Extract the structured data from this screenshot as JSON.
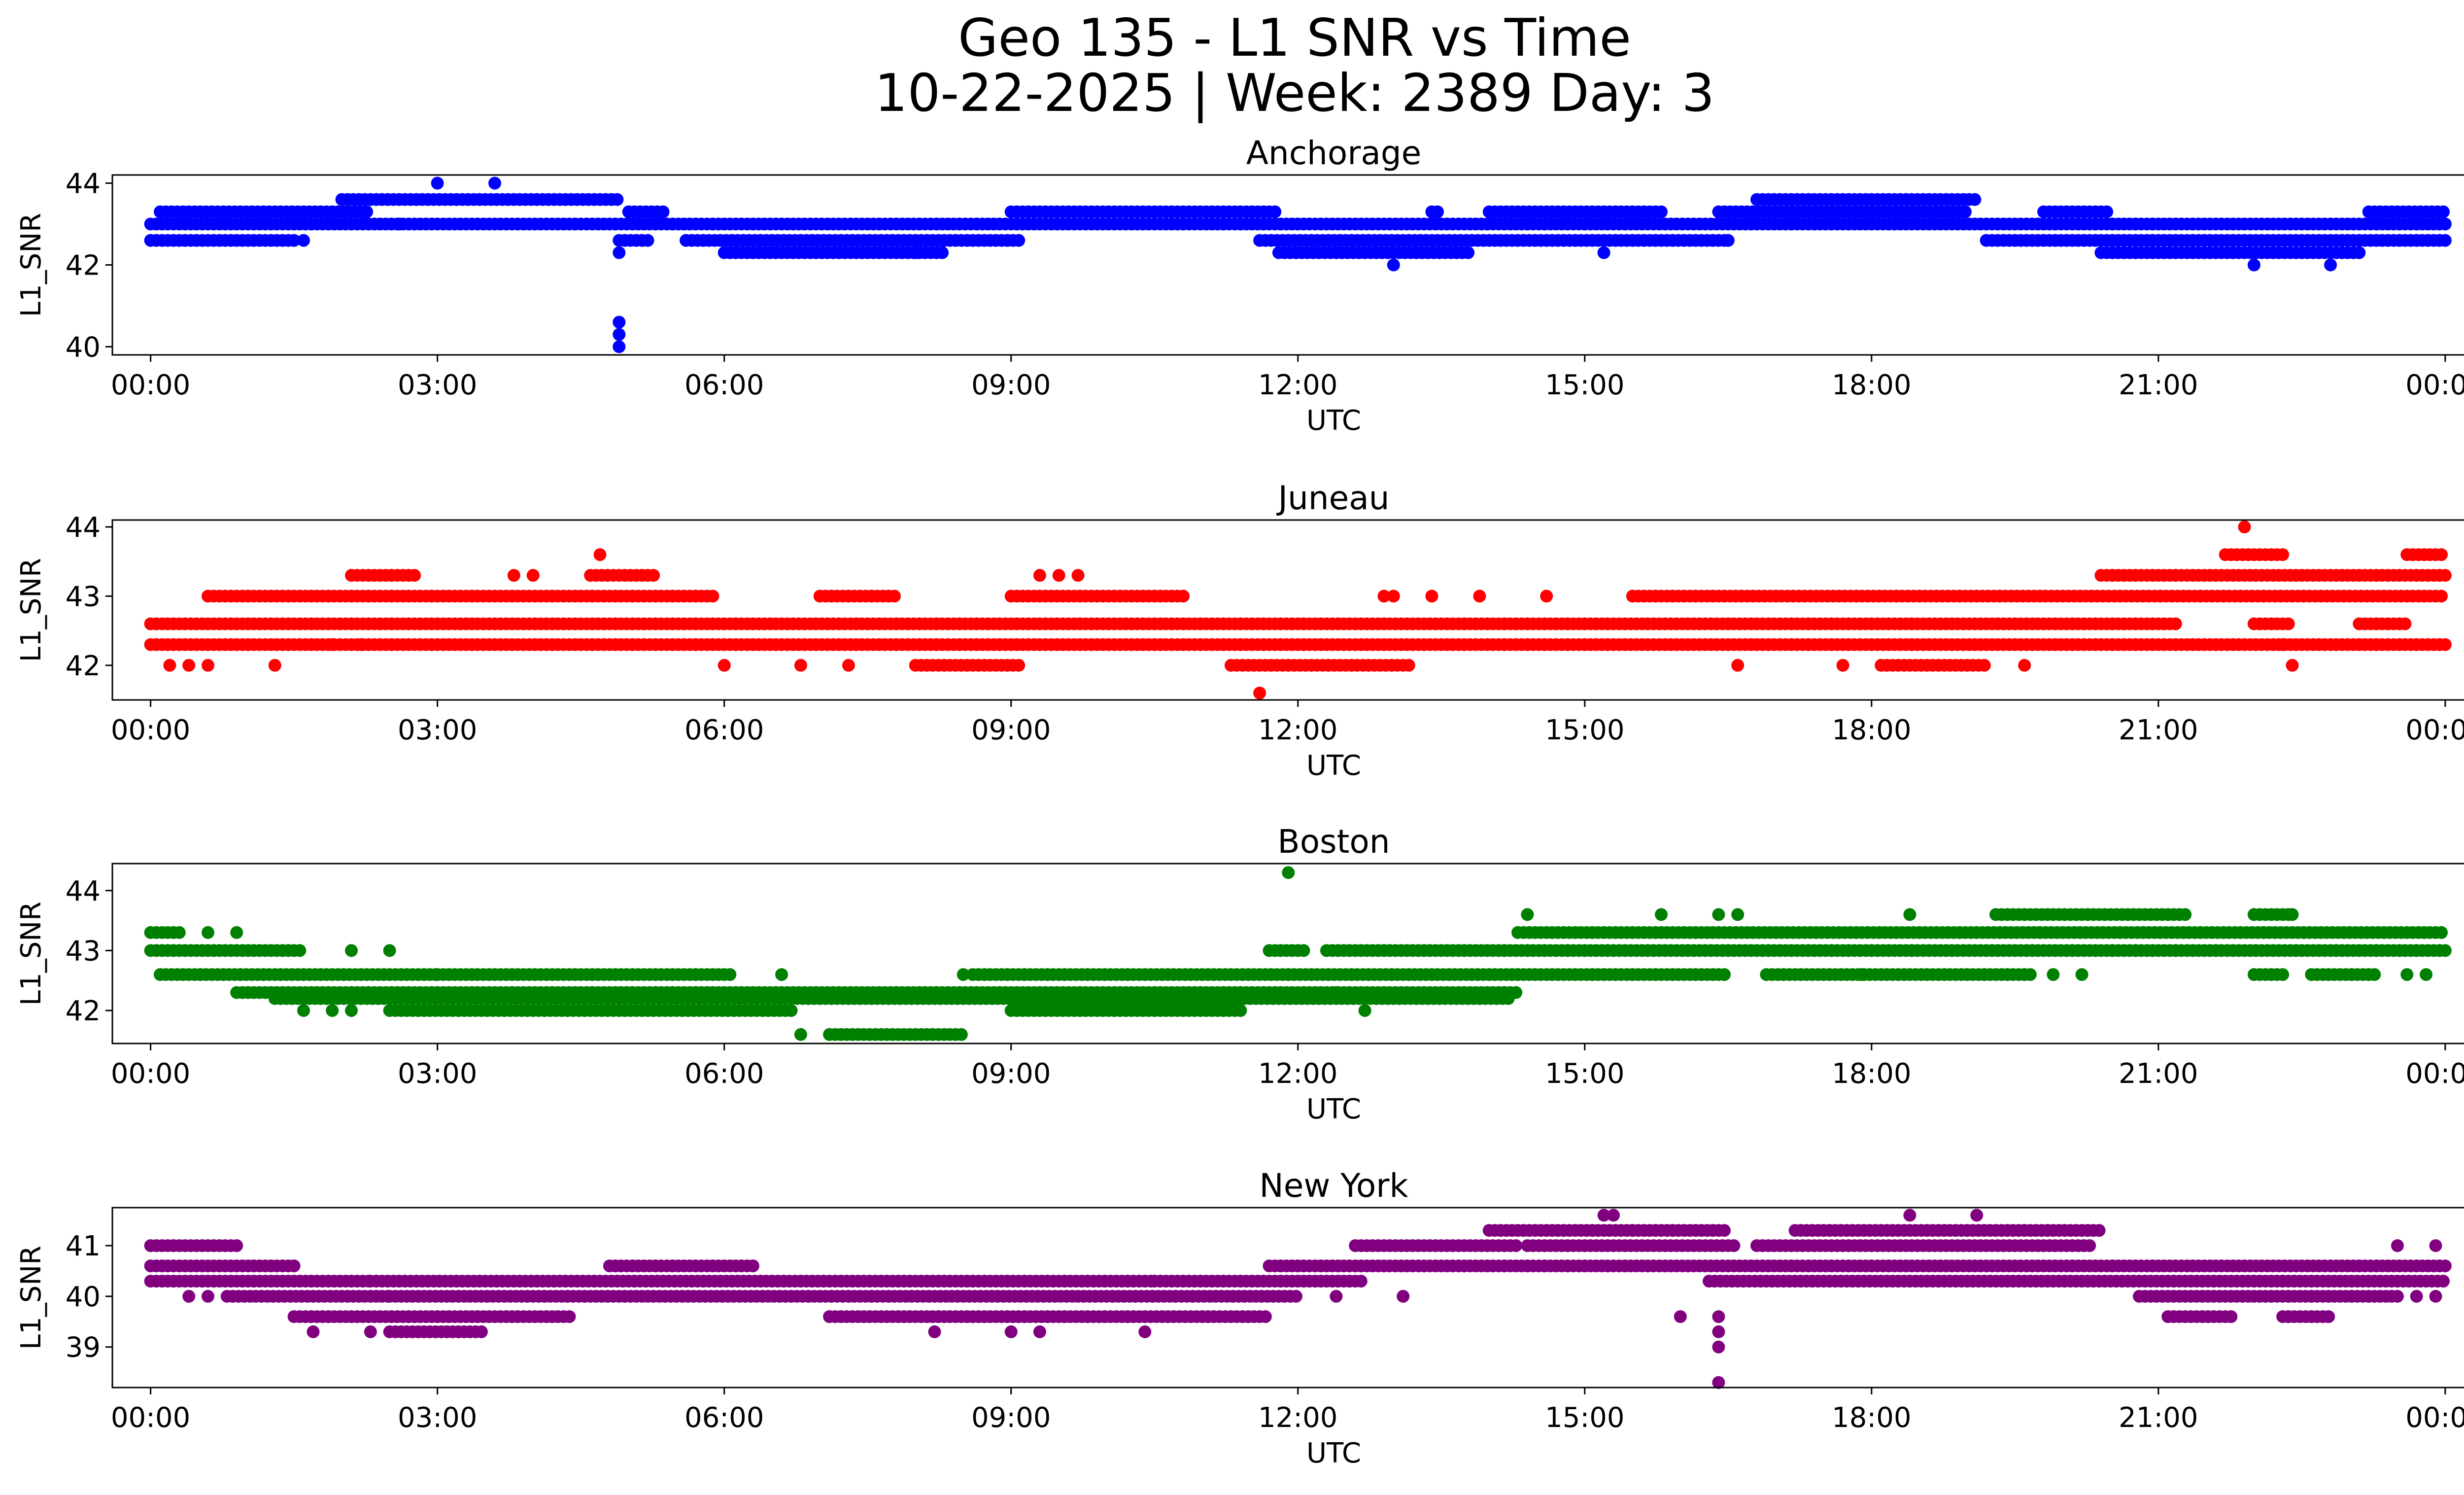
{
  "title_line1": "Geo 135 - L1 SNR vs Time",
  "title_line2": "10-22-2025 | Week: 2389 Day: 3",
  "chart_data": [
    {
      "type": "scatter",
      "title": "Anchorage",
      "color": "#0000ff",
      "xlabel": "UTC",
      "ylabel": "L1_SNR",
      "xlim_hours": [
        -0.4,
        25.15
      ],
      "ylim": [
        39.8,
        44.2
      ],
      "yticks": [
        40,
        42,
        44
      ],
      "xtick_labels": [
        "00:00",
        "03:00",
        "06:00",
        "09:00",
        "12:00",
        "15:00",
        "18:00",
        "21:00",
        "00:00"
      ],
      "series": [
        {
          "name": "Anchorage",
          "bands": [
            {
              "y": 42.6,
              "segments": [
                [
                  0.0,
                  1.5
                ],
                [
                  4.9,
                  5.2
                ],
                [
                  5.6,
                  9.1
                ],
                [
                  11.6,
                  16.5
                ],
                [
                  19.2,
                  24.0
                ]
              ]
            },
            {
              "y": 43.0,
              "segments": [
                [
                  0.0,
                  24.0
                ]
              ]
            },
            {
              "y": 43.3,
              "segments": [
                [
                  0.1,
                  2.3
                ],
                [
                  5.0,
                  5.4
                ],
                [
                  9.0,
                  11.8
                ],
                [
                  13.4,
                  13.5
                ],
                [
                  14.0,
                  15.8
                ],
                [
                  16.4,
                  19.0
                ],
                [
                  19.8,
                  20.5
                ],
                [
                  23.2,
                  24.0
                ]
              ]
            },
            {
              "y": 43.6,
              "segments": [
                [
                  2.0,
                  4.9
                ],
                [
                  16.8,
                  19.1
                ]
              ]
            },
            {
              "y": 42.3,
              "segments": [
                [
                  6.0,
                  8.3
                ],
                [
                  11.8,
                  13.8
                ],
                [
                  20.4,
                  23.1
                ]
              ]
            }
          ],
          "points": [
            [
              3.0,
              44.0
            ],
            [
              3.6,
              44.0
            ],
            [
              4.9,
              40.0
            ],
            [
              4.9,
              40.3
            ],
            [
              4.9,
              40.6
            ],
            [
              4.9,
              42.3
            ],
            [
              13.0,
              42.0
            ],
            [
              22.0,
              42.0
            ],
            [
              22.8,
              42.0
            ],
            [
              1.6,
              42.6
            ],
            [
              2.6,
              43.0
            ],
            [
              8.0,
              42.3
            ],
            [
              16.5,
              42.6
            ],
            [
              15.2,
              42.3
            ]
          ]
        }
      ]
    },
    {
      "type": "scatter",
      "title": "Juneau",
      "color": "#ff0000",
      "xlabel": "UTC",
      "ylabel": "L1_SNR",
      "xlim_hours": [
        -0.4,
        25.15
      ],
      "ylim": [
        41.5,
        44.1
      ],
      "yticks": [
        42,
        43,
        44
      ],
      "xtick_labels": [
        "00:00",
        "03:00",
        "06:00",
        "09:00",
        "12:00",
        "15:00",
        "18:00",
        "21:00",
        "00:00"
      ],
      "series": [
        {
          "name": "Juneau",
          "bands": [
            {
              "y": 42.3,
              "segments": [
                [
                  0.0,
                  24.0
                ]
              ]
            },
            {
              "y": 42.6,
              "segments": [
                [
                  0.0,
                  21.2
                ],
                [
                  22.0,
                  22.4
                ]
              ]
            },
            {
              "y": 43.0,
              "segments": [
                [
                  0.6,
                  5.9
                ],
                [
                  7.0,
                  7.8
                ],
                [
                  9.0,
                  10.8
                ],
                [
                  15.5,
                  20.3
                ],
                [
                  20.3,
                  24.0
                ]
              ]
            },
            {
              "y": 43.3,
              "segments": [
                [
                  2.1,
                  2.8
                ],
                [
                  4.6,
                  5.3
                ],
                [
                  20.4,
                  24.0
                ]
              ]
            },
            {
              "y": 42.0,
              "segments": [
                [
                  8.0,
                  9.1
                ],
                [
                  11.3,
                  13.2
                ],
                [
                  18.1,
                  19.2
                ]
              ]
            },
            {
              "y": 43.6,
              "segments": [
                [
                  21.7,
                  22.3
                ],
                [
                  23.6,
                  24.0
                ]
              ]
            },
            {
              "y": 42.6,
              "segments": [
                [
                  23.1,
                  23.6
                ]
              ]
            }
          ],
          "points": [
            [
              0.2,
              42.0
            ],
            [
              0.4,
              42.0
            ],
            [
              0.6,
              42.0
            ],
            [
              1.3,
              42.0
            ],
            [
              4.7,
              43.6
            ],
            [
              9.3,
              43.3
            ],
            [
              9.5,
              43.3
            ],
            [
              9.7,
              43.3
            ],
            [
              11.6,
              41.6
            ],
            [
              21.9,
              44.0
            ],
            [
              22.4,
              42.0
            ],
            [
              22.3,
              42.3
            ],
            [
              12.9,
              43.0
            ],
            [
              13.0,
              43.0
            ],
            [
              13.4,
              43.0
            ],
            [
              13.9,
              43.0
            ],
            [
              14.6,
              43.0
            ],
            [
              6.0,
              42.0
            ],
            [
              6.8,
              42.0
            ],
            [
              7.3,
              42.0
            ],
            [
              16.6,
              42.0
            ],
            [
              17.7,
              42.0
            ],
            [
              19.6,
              42.0
            ],
            [
              3.8,
              43.3
            ],
            [
              4.0,
              43.3
            ],
            [
              1.9,
              42.3
            ],
            [
              2.2,
              42.3
            ]
          ]
        }
      ]
    },
    {
      "type": "scatter",
      "title": "Boston",
      "color": "#008000",
      "xlabel": "UTC",
      "ylabel": "L1_SNR",
      "xlim_hours": [
        -0.4,
        25.15
      ],
      "ylim": [
        41.45,
        44.45
      ],
      "yticks": [
        42,
        43,
        44
      ],
      "xtick_labels": [
        "00:00",
        "03:00",
        "06:00",
        "09:00",
        "12:00",
        "15:00",
        "18:00",
        "21:00",
        "00:00"
      ],
      "series": [
        {
          "name": "Boston",
          "bands": [
            {
              "y": 43.0,
              "segments": [
                [
                  0.0,
                  1.6
                ],
                [
                  11.7,
                  12.1
                ],
                [
                  12.3,
                  24.0
                ]
              ]
            },
            {
              "y": 42.6,
              "segments": [
                [
                  0.1,
                  3.0
                ],
                [
                  3.0,
                  6.1
                ],
                [
                  8.6,
                  14.3
                ],
                [
                  14.3,
                  16.5
                ],
                [
                  16.9,
                  19.7
                ],
                [
                  22.0,
                  22.3
                ],
                [
                  22.6,
                  23.3
                ]
              ]
            },
            {
              "y": 42.3,
              "segments": [
                [
                  0.9,
                  14.3
                ]
              ]
            },
            {
              "y": 42.2,
              "segments": [
                [
                  1.3,
                  14.2
                ]
              ]
            },
            {
              "y": 42.0,
              "segments": [
                [
                  2.5,
                  6.7
                ],
                [
                  9.0,
                  11.4
                ]
              ]
            },
            {
              "y": 43.3,
              "segments": [
                [
                  14.3,
                  24.0
                ]
              ]
            },
            {
              "y": 43.6,
              "segments": [
                [
                  19.3,
                  21.3
                ],
                [
                  22.0,
                  22.4
                ]
              ]
            },
            {
              "y": 41.6,
              "segments": [
                [
                  7.1,
                  8.5
                ]
              ]
            },
            {
              "y": 43.3,
              "segments": [
                [
                  0.0,
                  0.3
                ]
              ]
            }
          ],
          "points": [
            [
              6.8,
              41.6
            ],
            [
              11.9,
              44.3
            ],
            [
              0.6,
              43.3
            ],
            [
              0.9,
              43.3
            ],
            [
              14.4,
              43.6
            ],
            [
              15.8,
              43.6
            ],
            [
              16.4,
              43.6
            ],
            [
              16.6,
              43.6
            ],
            [
              18.4,
              43.6
            ],
            [
              22.4,
              43.6
            ],
            [
              1.6,
              42.0
            ],
            [
              1.9,
              42.0
            ],
            [
              2.1,
              42.0
            ],
            [
              12.7,
              42.0
            ],
            [
              12.4,
              42.3
            ],
            [
              8.5,
              42.6
            ],
            [
              6.6,
              42.6
            ],
            [
              2.5,
              43.0
            ],
            [
              2.1,
              43.0
            ],
            [
              23.6,
              42.6
            ],
            [
              23.8,
              42.6
            ],
            [
              19.9,
              42.6
            ],
            [
              20.2,
              42.6
            ],
            [
              17.9,
              42.6
            ],
            [
              15.2,
              42.6
            ]
          ]
        }
      ]
    },
    {
      "type": "scatter",
      "title": "New York",
      "color": "#800080",
      "xlabel": "UTC",
      "ylabel": "L1_SNR",
      "xlim_hours": [
        -0.4,
        25.15
      ],
      "ylim": [
        38.2,
        41.75
      ],
      "yticks": [
        39,
        40,
        41
      ],
      "xtick_labels": [
        "00:00",
        "03:00",
        "06:00",
        "09:00",
        "12:00",
        "15:00",
        "18:00",
        "21:00",
        "00:00"
      ],
      "series": [
        {
          "name": "New York",
          "bands": [
            {
              "y": 41.0,
              "segments": [
                [
                  0.0,
                  0.9
                ],
                [
                  12.6,
                  14.3
                ],
                [
                  14.4,
                  16.6
                ],
                [
                  16.8,
                  20.3
                ]
              ]
            },
            {
              "y": 40.6,
              "segments": [
                [
                  0.0,
                  1.5
                ],
                [
                  4.8,
                  6.3
                ],
                [
                  11.7,
                  24.0
                ]
              ]
            },
            {
              "y": 40.3,
              "segments": [
                [
                  0.0,
                  2.3
                ],
                [
                  2.3,
                  10.5
                ],
                [
                  10.5,
                  12.7
                ],
                [
                  16.3,
                  22.3
                ],
                [
                  22.3,
                  24.0
                ]
              ]
            },
            {
              "y": 40.0,
              "segments": [
                [
                  0.8,
                  2.5
                ],
                [
                  2.5,
                  12.0
                ],
                [
                  20.8,
                  23.5
                ]
              ]
            },
            {
              "y": 39.6,
              "segments": [
                [
                  1.5,
                  4.4
                ],
                [
                  7.1,
                  11.7
                ],
                [
                  21.1,
                  21.8
                ],
                [
                  22.3,
                  22.8
                ]
              ]
            },
            {
              "y": 41.3,
              "segments": [
                [
                  14.0,
                  16.5
                ],
                [
                  17.2,
                  20.4
                ]
              ]
            },
            {
              "y": 39.3,
              "segments": [
                [
                  2.5,
                  3.5
                ]
              ]
            }
          ],
          "points": [
            [
              16.4,
              38.3
            ],
            [
              16.4,
              39.0
            ],
            [
              16.4,
              39.3
            ],
            [
              16.4,
              39.6
            ],
            [
              16.0,
              39.6
            ],
            [
              15.2,
              41.6
            ],
            [
              15.3,
              41.6
            ],
            [
              18.4,
              41.6
            ],
            [
              19.1,
              41.6
            ],
            [
              1.7,
              39.3
            ],
            [
              2.3,
              39.3
            ],
            [
              8.2,
              39.3
            ],
            [
              9.0,
              39.3
            ],
            [
              9.3,
              39.3
            ],
            [
              10.4,
              39.3
            ],
            [
              0.4,
              40.0
            ],
            [
              0.6,
              40.0
            ],
            [
              23.5,
              41.0
            ],
            [
              23.9,
              41.0
            ],
            [
              23.1,
              40.6
            ],
            [
              23.7,
              40.0
            ],
            [
              23.9,
              40.0
            ],
            [
              13.1,
              40.0
            ],
            [
              12.4,
              40.0
            ]
          ]
        }
      ]
    }
  ]
}
